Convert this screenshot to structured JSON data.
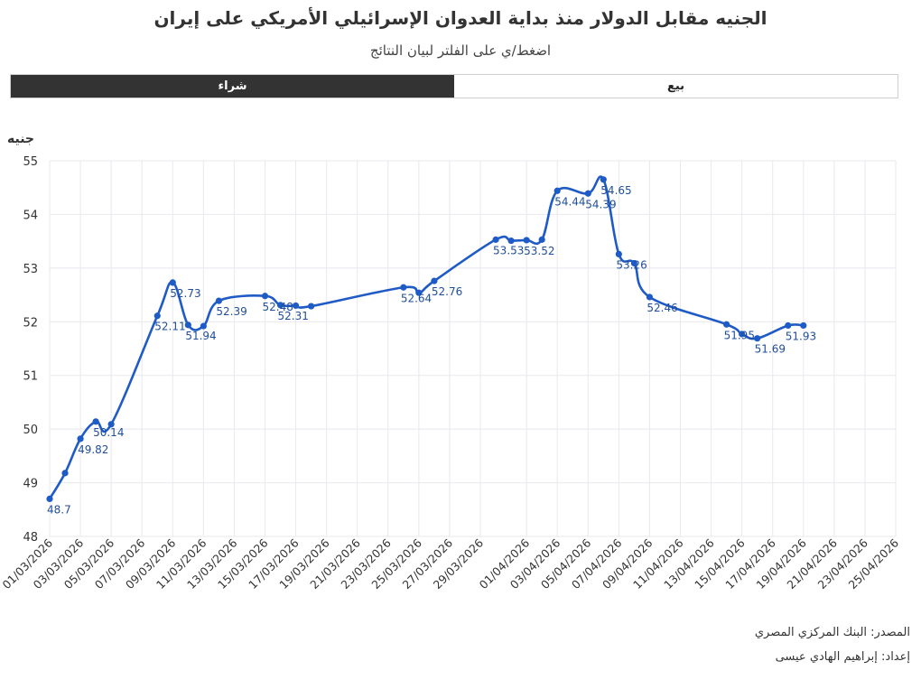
{
  "header": {
    "title": "الجنيه مقابل الدولار منذ بداية العدوان الإسرائيلي الأمريكي على إيران",
    "subtitle": "اضغط/ي على الفلتر لبيان النتائج"
  },
  "filters": {
    "buy_label": "شراء",
    "sell_label": "بيع",
    "active": "buy"
  },
  "colors": {
    "line": "#1f5bc6",
    "label": "#1f4e9a",
    "grid": "#e8e8ee",
    "active_tab": "#333333"
  },
  "chart_data": {
    "type": "line",
    "ylabel": "جنيه",
    "ylim": [
      48,
      55
    ],
    "yticks": [
      48,
      49,
      50,
      51,
      52,
      53,
      54,
      55
    ],
    "xlim": [
      "2026-03-01",
      "2026-04-25"
    ],
    "xtick_labels": [
      "01/03/2026",
      "03/03/2026",
      "05/03/2026",
      "07/03/2026",
      "09/03/2026",
      "11/03/2026",
      "13/03/2026",
      "15/03/2026",
      "17/03/2026",
      "19/03/2026",
      "21/03/2026",
      "23/03/2026",
      "25/03/2026",
      "27/03/2026",
      "29/03/2026",
      "01/04/2026",
      "03/04/2026",
      "05/04/2026",
      "07/04/2026",
      "09/04/2026",
      "11/04/2026",
      "13/04/2026",
      "15/04/2026",
      "17/04/2026",
      "19/04/2026",
      "21/04/2026",
      "23/04/2026",
      "25/04/2026"
    ],
    "grid": true,
    "series": [
      {
        "points": [
          {
            "x": "2026-03-01",
            "y": 48.7,
            "label": "48.7"
          },
          {
            "x": "2026-03-02",
            "y": 49.18,
            "label": ""
          },
          {
            "x": "2026-03-03",
            "y": 49.82,
            "label": "49.82"
          },
          {
            "x": "2026-03-04",
            "y": 50.14,
            "label": "50.14"
          },
          {
            "x": "2026-03-05",
            "y": 50.09,
            "label": ""
          },
          {
            "x": "2026-03-08",
            "y": 52.11,
            "label": "52.11"
          },
          {
            "x": "2026-03-09",
            "y": 52.73,
            "label": "52.73"
          },
          {
            "x": "2026-03-10",
            "y": 51.94,
            "label": "51.94"
          },
          {
            "x": "2026-03-11",
            "y": 51.92,
            "label": ""
          },
          {
            "x": "2026-03-12",
            "y": 52.39,
            "label": "52.39"
          },
          {
            "x": "2026-03-15",
            "y": 52.48,
            "label": "52.48"
          },
          {
            "x": "2026-03-16",
            "y": 52.31,
            "label": "52.31"
          },
          {
            "x": "2026-03-17",
            "y": 52.3,
            "label": ""
          },
          {
            "x": "2026-03-18",
            "y": 52.29,
            "label": ""
          },
          {
            "x": "2026-03-24",
            "y": 52.64,
            "label": "52.64"
          },
          {
            "x": "2026-03-25",
            "y": 52.54,
            "label": ""
          },
          {
            "x": "2026-03-26",
            "y": 52.76,
            "label": "52.76"
          },
          {
            "x": "2026-03-30",
            "y": 53.53,
            "label": "53.53"
          },
          {
            "x": "2026-03-31",
            "y": 53.51,
            "label": ""
          },
          {
            "x": "2026-04-01",
            "y": 53.52,
            "label": "53.52"
          },
          {
            "x": "2026-04-02",
            "y": 53.53,
            "label": ""
          },
          {
            "x": "2026-04-03",
            "y": 54.44,
            "label": "54.44"
          },
          {
            "x": "2026-04-05",
            "y": 54.39,
            "label": "54.39"
          },
          {
            "x": "2026-04-06",
            "y": 54.65,
            "label": "54.65"
          },
          {
            "x": "2026-04-07",
            "y": 53.26,
            "label": "53.26"
          },
          {
            "x": "2026-04-08",
            "y": 53.09,
            "label": ""
          },
          {
            "x": "2026-04-09",
            "y": 52.46,
            "label": "52.46"
          },
          {
            "x": "2026-04-14",
            "y": 51.95,
            "label": "51.95"
          },
          {
            "x": "2026-04-15",
            "y": 51.77,
            "label": ""
          },
          {
            "x": "2026-04-16",
            "y": 51.69,
            "label": "51.69"
          },
          {
            "x": "2026-04-18",
            "y": 51.93,
            "label": "51.93"
          },
          {
            "x": "2026-04-19",
            "y": 51.93,
            "label": ""
          }
        ]
      }
    ]
  },
  "footer": {
    "source": "المصدر: البنك المركزي المصري",
    "author": "إعداد: إبراهيم الهادي عيسى"
  }
}
